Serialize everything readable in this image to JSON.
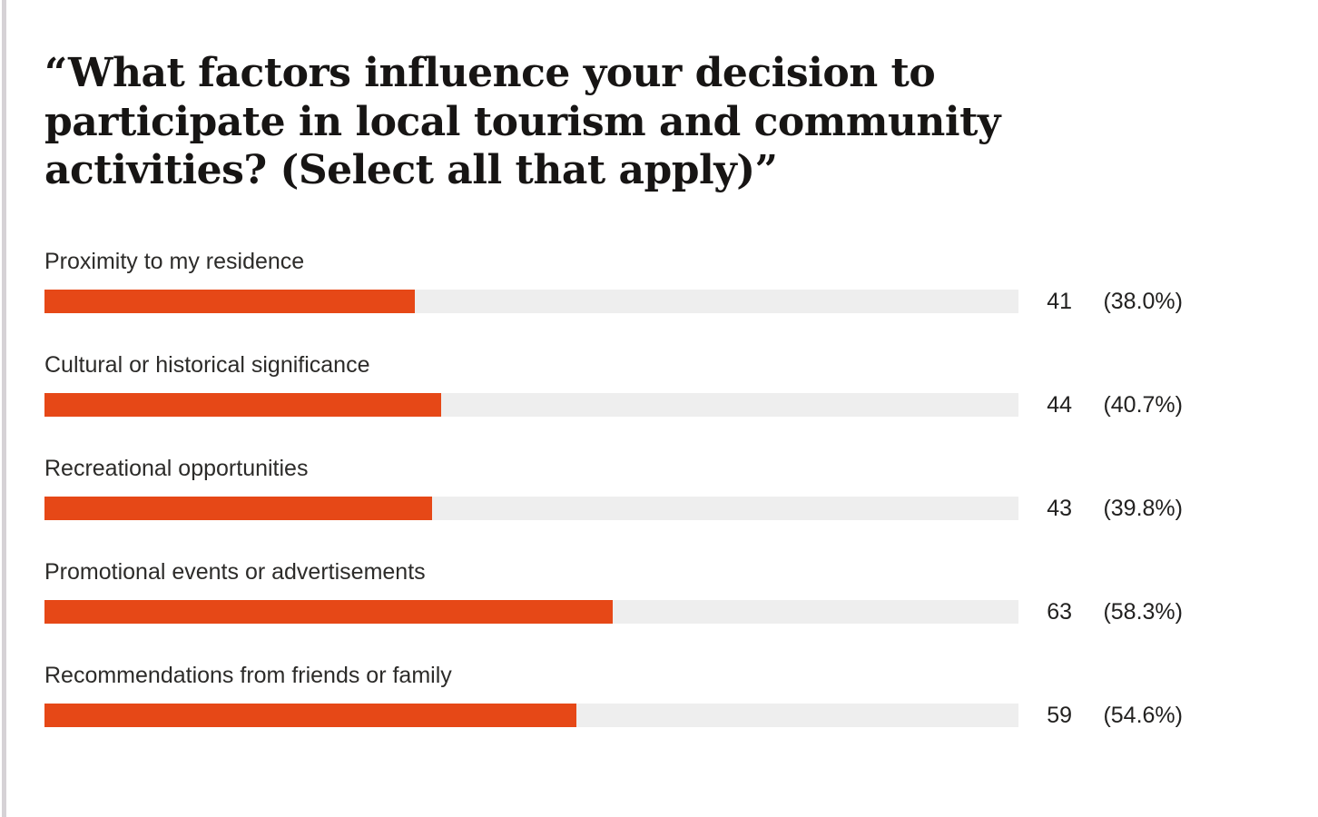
{
  "page": {
    "title": "“What factors influence your decision to participate in local tourism and community activities? (Select all that apply)”"
  },
  "chart_data": {
    "type": "bar",
    "orientation": "horizontal",
    "title": "“What factors influence your decision to participate in local tourism and community activities? (Select all that apply)”",
    "categories": [
      "Proximity to my residence",
      "Cultural or historical significance",
      "Recreational opportunities",
      "Promotional events or advertisements",
      "Recommendations from friends or family"
    ],
    "values": [
      41,
      44,
      43,
      63,
      59
    ],
    "percent_values": [
      38.0,
      40.7,
      39.8,
      58.3,
      54.6
    ],
    "xlim": [
      0,
      100
    ],
    "grid": false,
    "legend": false,
    "bar_color": "#e64817",
    "track_color": "#eeeeee"
  },
  "rows": [
    {
      "label": "Proximity to my residence",
      "count": "41",
      "percent": "(38.0%)",
      "pct_value": 38.0
    },
    {
      "label": "Cultural or historical significance",
      "count": "44",
      "percent": "(40.7%)",
      "pct_value": 40.7
    },
    {
      "label": "Recreational opportunities",
      "count": "43",
      "percent": "(39.8%)",
      "pct_value": 39.8
    },
    {
      "label": "Promotional events or advertisements",
      "count": "63",
      "percent": "(58.3%)",
      "pct_value": 58.3
    },
    {
      "label": "Recommendations from friends or family",
      "count": "59",
      "percent": "(54.6%)",
      "pct_value": 54.6
    }
  ]
}
